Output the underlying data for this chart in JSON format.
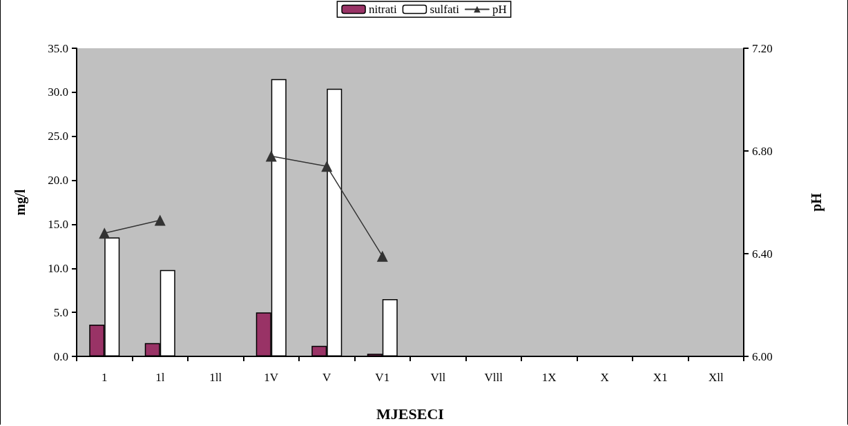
{
  "chart_data": {
    "type": "bar",
    "xlabel": "MJESECI",
    "ylabel": "mg/l",
    "y2label": "pH",
    "categories": [
      "1",
      "1l",
      "1ll",
      "1V",
      "V",
      "V1",
      "Vll",
      "Vlll",
      "1X",
      "X",
      "X1",
      "Xll"
    ],
    "series": [
      {
        "name": "nitrati",
        "color": "#993366",
        "values": [
          3.6,
          1.5,
          null,
          5.0,
          1.2,
          0.3,
          null,
          null,
          null,
          null,
          null,
          null
        ]
      },
      {
        "name": "sulfati",
        "color": "#ffffff",
        "values": [
          13.5,
          9.8,
          null,
          31.5,
          30.4,
          6.5,
          null,
          null,
          null,
          null,
          null,
          null
        ]
      },
      {
        "name": "pH",
        "type": "line",
        "axis": "y2",
        "color": "#333333",
        "marker": "triangle",
        "values": [
          6.48,
          6.53,
          null,
          6.78,
          6.74,
          6.39,
          null,
          null,
          null,
          null,
          null,
          null
        ]
      }
    ],
    "ylim": [
      0,
      35
    ],
    "yticks": [
      {
        "value": 0,
        "label": "0.0"
      },
      {
        "value": 5,
        "label": "5.0"
      },
      {
        "value": 10,
        "label": "10.0"
      },
      {
        "value": 15,
        "label": "15.0"
      },
      {
        "value": 20,
        "label": "20.0"
      },
      {
        "value": 25,
        "label": "25.0"
      },
      {
        "value": 30,
        "label": "30.0"
      },
      {
        "value": 35,
        "label": "35.0"
      }
    ],
    "y2lim": [
      6,
      7.2
    ],
    "y2ticks": [
      {
        "value": 6,
        "label": "6.00"
      },
      {
        "value": 6.4,
        "label": "6.40"
      },
      {
        "value": 6.8,
        "label": "6.80"
      },
      {
        "value": 7.2,
        "label": "7.20"
      }
    ],
    "grid": false,
    "legend": "top"
  }
}
